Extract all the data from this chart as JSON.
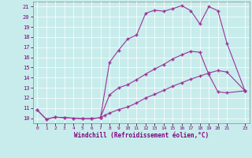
{
  "xlabel": "Windchill (Refroidissement éolien,°C)",
  "background_color": "#c8ecec",
  "grid_color": "#ffffff",
  "line_color": "#993399",
  "xlim": [
    -0.5,
    23.5
  ],
  "ylim": [
    9.5,
    21.5
  ],
  "xtick_labels": [
    "0",
    "1",
    "2",
    "3",
    "4",
    "5",
    "6",
    "7",
    "8",
    "9",
    "10",
    "11",
    "12",
    "13",
    "14",
    "15",
    "16",
    "17",
    "18",
    "19",
    "20",
    "21",
    "23"
  ],
  "xtick_pos": [
    0,
    1,
    2,
    3,
    4,
    5,
    6,
    7,
    8,
    9,
    10,
    11,
    12,
    13,
    14,
    15,
    16,
    17,
    18,
    19,
    20,
    21,
    23
  ],
  "yticks": [
    10,
    11,
    12,
    13,
    14,
    15,
    16,
    17,
    18,
    19,
    20,
    21
  ],
  "curve1_x": [
    0,
    1,
    2,
    3,
    4,
    5,
    6,
    7,
    7.5,
    8,
    9,
    10,
    11,
    12,
    13,
    14,
    15,
    16,
    17,
    18,
    19,
    20,
    21,
    23
  ],
  "curve1_y": [
    10.8,
    9.9,
    10.1,
    10.05,
    10.0,
    9.95,
    9.95,
    10.05,
    10.3,
    10.5,
    10.85,
    11.1,
    11.5,
    12.0,
    12.35,
    12.75,
    13.15,
    13.5,
    13.85,
    14.15,
    14.45,
    14.7,
    14.55,
    12.7
  ],
  "curve2_x": [
    0,
    1,
    2,
    3,
    4,
    5,
    6,
    7,
    8,
    9,
    10,
    11,
    12,
    13,
    14,
    15,
    16,
    17,
    18,
    19,
    20,
    21,
    23
  ],
  "curve2_y": [
    10.8,
    9.9,
    10.1,
    10.05,
    10.0,
    9.95,
    9.95,
    10.05,
    12.3,
    13.0,
    13.3,
    13.8,
    14.35,
    14.85,
    15.3,
    15.85,
    16.25,
    16.6,
    16.5,
    14.3,
    12.6,
    12.5,
    12.7
  ],
  "curve3_x": [
    7,
    8,
    9,
    10,
    11,
    12,
    13,
    14,
    15,
    16,
    17,
    18,
    19,
    20,
    21,
    23
  ],
  "curve3_y": [
    10.05,
    15.5,
    16.7,
    17.8,
    18.2,
    20.35,
    20.65,
    20.55,
    20.8,
    21.1,
    20.6,
    19.3,
    21.0,
    20.6,
    17.4,
    12.7
  ],
  "marker": "+",
  "markersize": 2.5,
  "linewidth": 0.8
}
